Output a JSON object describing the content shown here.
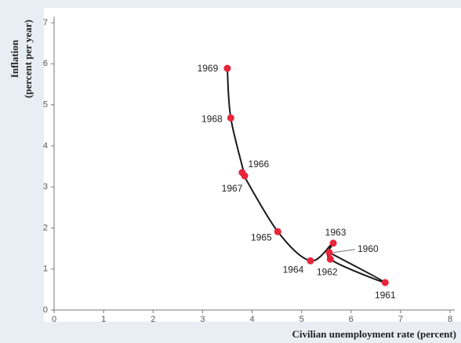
{
  "chart_data": {
    "type": "line",
    "x_label": "Civilian unemployment rate (percent)",
    "y_label": [
      "Inflation",
      "(percent per year)"
    ],
    "labels": [
      "1960",
      "1961",
      "1962",
      "1963",
      "1964",
      "1965",
      "1966",
      "1967",
      "1968",
      "1969"
    ],
    "x": [
      5.56,
      6.69,
      5.58,
      5.64,
      5.18,
      4.52,
      3.8,
      3.85,
      3.57,
      3.5
    ],
    "values": [
      1.4,
      0.67,
      1.24,
      1.63,
      1.2,
      1.91,
      3.35,
      3.27,
      4.68,
      5.89
    ],
    "color": "#e8253a",
    "line_color": "#1a1a1a",
    "xlim": [
      0,
      8
    ],
    "xticks": [
      0,
      1,
      2,
      3,
      4,
      5,
      6,
      7,
      8
    ],
    "ylim": [
      0,
      7
    ],
    "yticks": [
      0,
      1,
      2,
      3,
      4,
      5,
      6,
      7
    ]
  }
}
